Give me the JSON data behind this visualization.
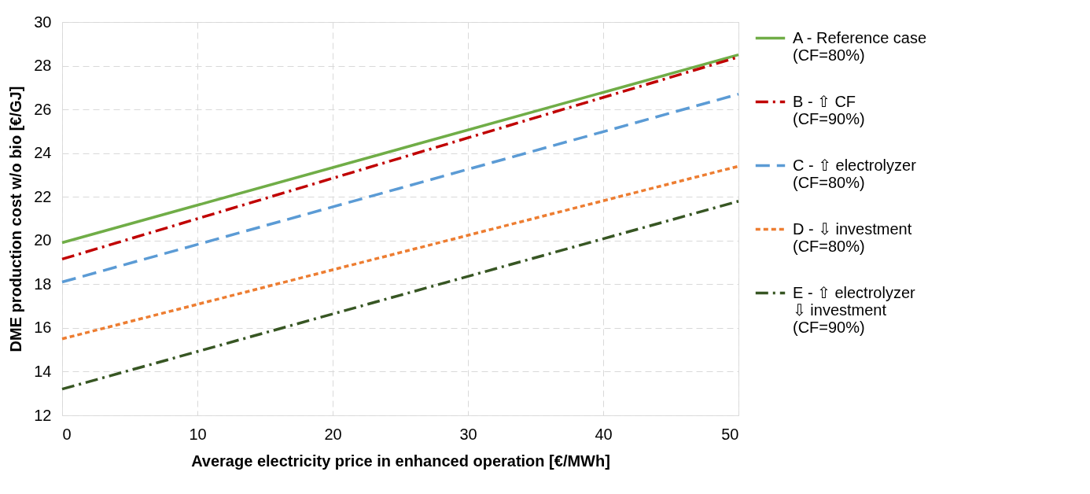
{
  "chart_data": {
    "type": "line",
    "xlabel": "Average electricity price in enhanced operation [€/MWh]",
    "ylabel": "DME production cost w/o bio  [€/GJ]",
    "x": [
      0,
      50
    ],
    "series": [
      {
        "name": "A - Reference case\n(CF=80%)",
        "color": "#70ad47",
        "line_style": "solid",
        "values": [
          19.9,
          28.5
        ]
      },
      {
        "name": "B - ⇧ CF\n(CF=90%)",
        "color": "#c00000",
        "line_style": "dashdot",
        "values": [
          19.15,
          28.4
        ]
      },
      {
        "name": "C - ⇧ electrolyzer\n(CF=80%)",
        "color": "#5b9bd5",
        "line_style": "longdash",
        "values": [
          18.1,
          26.7
        ]
      },
      {
        "name": "D - ⇩ investment\n(CF=80%)",
        "color": "#ed7d31",
        "line_style": "dashed",
        "values": [
          15.5,
          23.4
        ]
      },
      {
        "name": "E - ⇧ electrolyzer\n⇩ investment\n(CF=90%)",
        "color": "#375623",
        "line_style": "dashdot",
        "values": [
          13.2,
          21.8
        ]
      }
    ],
    "xlim": [
      0,
      50
    ],
    "xticks": [
      0,
      10,
      20,
      30,
      40,
      50
    ],
    "ylim": [
      12,
      30
    ],
    "yticks": [
      12,
      14,
      16,
      18,
      20,
      22,
      24,
      26,
      28,
      30
    ],
    "grid": true,
    "legend": "right",
    "marker": "none"
  }
}
